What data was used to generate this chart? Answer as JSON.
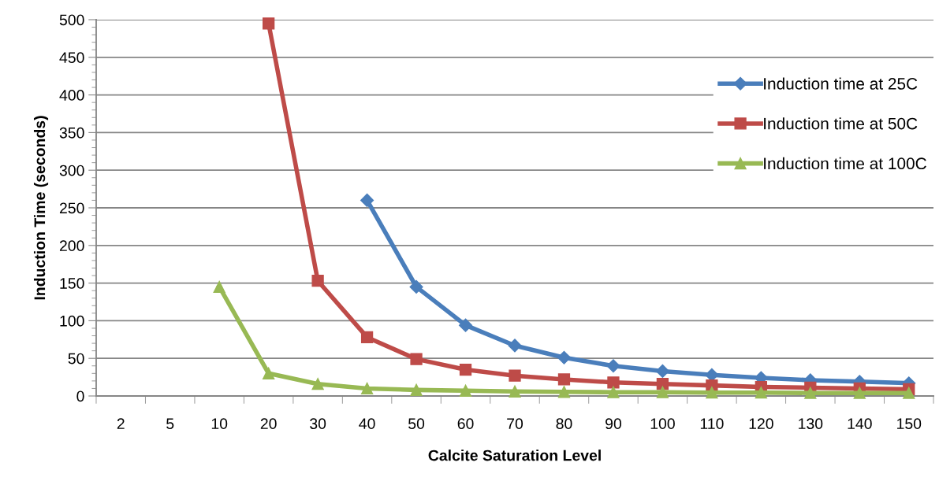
{
  "chart_data": {
    "type": "line",
    "xlabel": "Calcite Saturation Level",
    "ylabel": "Induction Time (seconds)",
    "categories": [
      "2",
      "5",
      "10",
      "20",
      "30",
      "40",
      "50",
      "60",
      "70",
      "80",
      "90",
      "100",
      "110",
      "120",
      "130",
      "140",
      "150"
    ],
    "series": [
      {
        "name": "Induction time at 25C",
        "color": "#4a7ebb",
        "marker": "diamond",
        "values": [
          null,
          null,
          null,
          null,
          null,
          260,
          145,
          94,
          67,
          51,
          40,
          33,
          28,
          24,
          21,
          19,
          17
        ]
      },
      {
        "name": "Induction time at 50C",
        "color": "#be4b48",
        "marker": "square",
        "values": [
          null,
          null,
          null,
          495,
          153,
          78,
          49,
          35,
          27,
          22,
          18,
          16,
          14,
          12,
          11,
          10,
          9
        ]
      },
      {
        "name": "Induction time at 100C",
        "color": "#98b954",
        "marker": "triangle",
        "values": [
          null,
          null,
          145,
          30,
          16,
          10,
          8,
          7,
          6,
          5.5,
          5,
          5,
          4.5,
          4.5,
          4,
          4,
          4
        ]
      }
    ],
    "ylim": [
      0,
      500
    ],
    "yticks": [
      0,
      50,
      100,
      150,
      200,
      250,
      300,
      350,
      400,
      450,
      500
    ],
    "grid": "y",
    "legend": "right",
    "line_style": "solid"
  }
}
